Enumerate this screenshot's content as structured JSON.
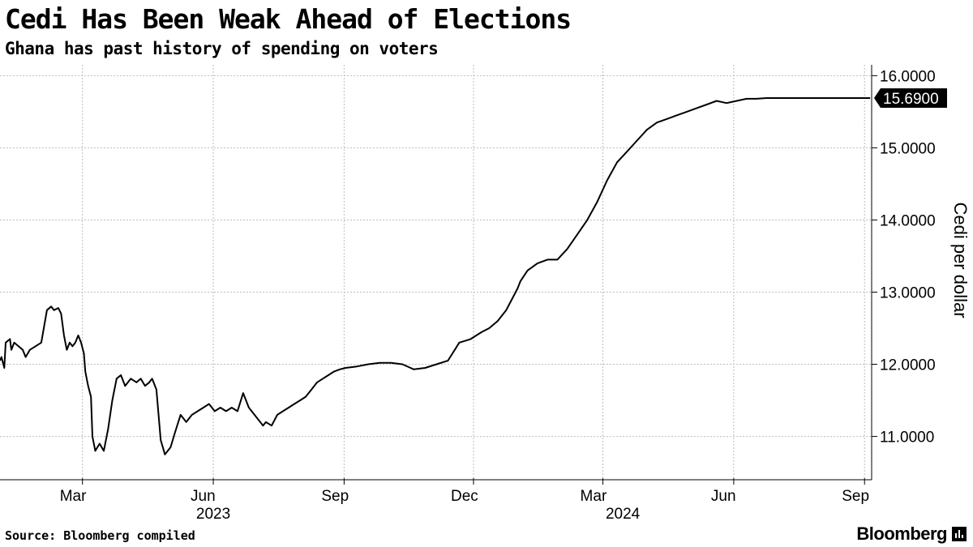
{
  "header": {
    "title": "Cedi Has Been Weak Ahead of Elections",
    "subtitle": "Ghana has past history of spending on voters"
  },
  "footer": {
    "source": "Source: Bloomberg compiled",
    "brand": "Bloomberg"
  },
  "icons": {
    "brand_mark": "bar-chart-icon"
  },
  "chart_data": {
    "type": "line",
    "title": "Cedi Has Been Weak Ahead of Elections",
    "subtitle": "Ghana has past history of spending on voters",
    "ylabel": "Cedi per dollar",
    "xlabel": "",
    "ylim": [
      10.4,
      16.15
    ],
    "xlim": [
      "2023-01-02",
      "2024-09-06"
    ],
    "yticks": [
      11,
      12,
      13,
      14,
      15,
      16
    ],
    "ytick_labels": [
      "11.0000",
      "12.0000",
      "13.0000",
      "14.0000",
      "15.0000",
      "16.0000"
    ],
    "xticks": [
      {
        "date": "2023-03-01",
        "label": "Mar"
      },
      {
        "date": "2023-06-01",
        "label": "Jun"
      },
      {
        "date": "2023-09-01",
        "label": "Sep"
      },
      {
        "date": "2023-12-01",
        "label": "Dec"
      },
      {
        "date": "2024-03-01",
        "label": "Mar"
      },
      {
        "date": "2024-06-01",
        "label": "Jun"
      },
      {
        "date": "2024-09-01",
        "label": "Sep"
      }
    ],
    "year_labels": [
      {
        "date": "2023-06-01",
        "label": "2023"
      },
      {
        "date": "2024-03-15",
        "label": "2024"
      }
    ],
    "grid": true,
    "last_value_label": "15.6900",
    "line_color": "#000000",
    "series": [
      {
        "x": [
          "2023-01-02",
          "2023-01-03",
          "2023-01-05",
          "2023-01-06",
          "2023-01-09",
          "2023-01-10",
          "2023-01-12",
          "2023-01-15",
          "2023-01-18",
          "2023-01-20",
          "2023-01-23",
          "2023-01-27",
          "2023-01-31",
          "2023-02-04",
          "2023-02-07",
          "2023-02-09",
          "2023-02-12",
          "2023-02-14",
          "2023-02-16",
          "2023-02-18",
          "2023-02-20",
          "2023-02-22",
          "2023-02-24",
          "2023-02-26",
          "2023-02-28",
          "2023-03-02",
          "2023-03-03",
          "2023-03-05",
          "2023-03-07",
          "2023-03-08",
          "2023-03-10",
          "2023-03-13",
          "2023-03-16",
          "2023-03-19",
          "2023-03-22",
          "2023-03-25",
          "2023-03-28",
          "2023-03-31",
          "2023-04-04",
          "2023-04-08",
          "2023-04-11",
          "2023-04-14",
          "2023-04-17",
          "2023-04-19",
          "2023-04-20",
          "2023-04-22",
          "2023-04-25",
          "2023-04-28",
          "2023-05-02",
          "2023-05-05",
          "2023-05-09",
          "2023-05-13",
          "2023-05-17",
          "2023-05-21",
          "2023-05-25",
          "2023-05-29",
          "2023-06-02",
          "2023-06-06",
          "2023-06-10",
          "2023-06-14",
          "2023-06-18",
          "2023-06-22",
          "2023-06-26",
          "2023-06-30",
          "2023-07-04",
          "2023-07-06",
          "2023-07-08",
          "2023-07-12",
          "2023-07-16",
          "2023-07-20",
          "2023-07-24",
          "2023-07-28",
          "2023-08-01",
          "2023-08-05",
          "2023-08-09",
          "2023-08-13",
          "2023-08-17",
          "2023-08-21",
          "2023-08-25",
          "2023-08-29",
          "2023-09-02",
          "2023-09-10",
          "2023-09-18",
          "2023-09-26",
          "2023-10-04",
          "2023-10-12",
          "2023-10-20",
          "2023-10-28",
          "2023-11-05",
          "2023-11-13",
          "2023-11-21",
          "2023-11-29",
          "2023-12-03",
          "2023-12-07",
          "2023-12-12",
          "2023-12-18",
          "2023-12-24",
          "2023-12-28",
          "2024-01-01",
          "2024-01-03",
          "2024-01-08",
          "2024-01-15",
          "2024-01-22",
          "2024-01-29",
          "2024-02-05",
          "2024-02-12",
          "2024-02-19",
          "2024-02-26",
          "2024-03-04",
          "2024-03-11",
          "2024-03-18",
          "2024-03-25",
          "2024-04-01",
          "2024-04-08",
          "2024-04-15",
          "2024-04-22",
          "2024-04-29",
          "2024-05-06",
          "2024-05-13",
          "2024-05-20",
          "2024-05-27",
          "2024-06-03",
          "2024-06-10",
          "2024-06-17",
          "2024-06-24",
          "2024-07-01",
          "2024-07-08",
          "2024-07-15",
          "2024-07-22",
          "2024-07-25",
          "2024-08-01",
          "2024-08-08",
          "2024-08-15",
          "2024-08-22",
          "2024-08-29",
          "2024-09-02",
          "2024-09-05"
        ],
        "y": [
          12.05,
          12.1,
          11.95,
          12.3,
          12.35,
          12.2,
          12.3,
          12.25,
          12.2,
          12.1,
          12.2,
          12.25,
          12.3,
          12.75,
          12.8,
          12.75,
          12.78,
          12.7,
          12.4,
          12.2,
          12.3,
          12.25,
          12.3,
          12.4,
          12.3,
          12.15,
          11.9,
          11.7,
          11.55,
          11.0,
          10.8,
          10.9,
          10.8,
          11.1,
          11.5,
          11.8,
          11.85,
          11.7,
          11.8,
          11.75,
          11.8,
          11.7,
          11.75,
          11.8,
          11.75,
          11.65,
          10.95,
          10.75,
          10.85,
          11.05,
          11.3,
          11.2,
          11.3,
          11.35,
          11.4,
          11.45,
          11.35,
          11.4,
          11.35,
          11.4,
          11.35,
          11.6,
          11.4,
          11.3,
          11.2,
          11.15,
          11.2,
          11.15,
          11.3,
          11.35,
          11.4,
          11.45,
          11.5,
          11.55,
          11.65,
          11.75,
          11.8,
          11.85,
          11.9,
          11.93,
          11.95,
          11.97,
          12.0,
          12.02,
          12.02,
          12.0,
          11.93,
          11.95,
          12.0,
          12.05,
          12.3,
          12.35,
          12.4,
          12.45,
          12.5,
          12.6,
          12.75,
          12.9,
          13.05,
          13.15,
          13.3,
          13.4,
          13.45,
          13.45,
          13.6,
          13.8,
          14.0,
          14.25,
          14.55,
          14.8,
          14.95,
          15.1,
          15.25,
          15.35,
          15.4,
          15.45,
          15.5,
          15.55,
          15.6,
          15.65,
          15.62,
          15.65,
          15.68,
          15.68,
          15.69,
          15.69,
          15.69,
          15.69,
          15.69,
          15.69,
          15.69,
          15.69,
          15.69,
          15.69,
          15.69,
          15.69,
          15.69
        ]
      }
    ]
  }
}
